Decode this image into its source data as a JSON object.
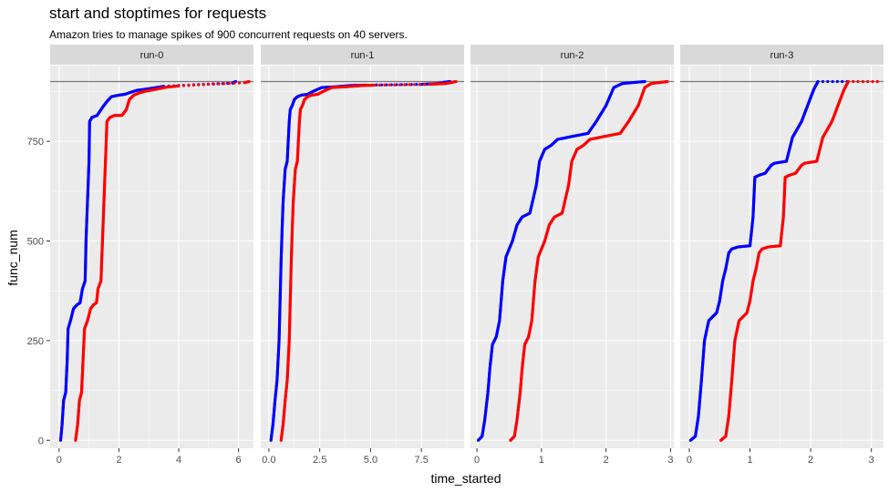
{
  "chart_data": {
    "type": "scatter",
    "title": "start and stoptimes for requests",
    "subtitle": "Amazon tries to manage spikes of 900 concurrent requests on 40 servers.",
    "xlabel": "time_started",
    "ylabel": "func_num",
    "ylim": [
      -20,
      940
    ],
    "yticks": [
      0,
      250,
      500,
      750
    ],
    "hline": 900,
    "grid": true,
    "colors": {
      "start": "#0000ff",
      "stop": "#ff0000"
    },
    "facets": [
      {
        "label": "run-0",
        "xlim": [
          -0.3,
          6.5
        ],
        "xticks": [
          0,
          2,
          4,
          6
        ],
        "start": [
          [
            0.05,
            0
          ],
          [
            0.1,
            40
          ],
          [
            0.15,
            100
          ],
          [
            0.22,
            120
          ],
          [
            0.27,
            200
          ],
          [
            0.3,
            280
          ],
          [
            0.38,
            300
          ],
          [
            0.48,
            330
          ],
          [
            0.6,
            340
          ],
          [
            0.7,
            345
          ],
          [
            0.78,
            380
          ],
          [
            0.87,
            400
          ],
          [
            0.9,
            500
          ],
          [
            0.95,
            600
          ],
          [
            1.0,
            700
          ],
          [
            1.02,
            800
          ],
          [
            1.1,
            810
          ],
          [
            1.27,
            815
          ],
          [
            1.45,
            835
          ],
          [
            1.6,
            850
          ],
          [
            1.75,
            862
          ],
          [
            2.0,
            866
          ],
          [
            2.2,
            868
          ],
          [
            2.35,
            872
          ],
          [
            2.6,
            878
          ],
          [
            3.0,
            882
          ],
          [
            3.5,
            888
          ],
          [
            4.5,
            892
          ],
          [
            5.8,
            896
          ],
          [
            5.9,
            900
          ]
        ],
        "stop": [
          [
            0.55,
            0
          ],
          [
            0.62,
            40
          ],
          [
            0.68,
            100
          ],
          [
            0.75,
            120
          ],
          [
            0.8,
            200
          ],
          [
            0.85,
            280
          ],
          [
            0.95,
            300
          ],
          [
            1.05,
            330
          ],
          [
            1.15,
            340
          ],
          [
            1.25,
            345
          ],
          [
            1.3,
            380
          ],
          [
            1.4,
            400
          ],
          [
            1.45,
            500
          ],
          [
            1.5,
            600
          ],
          [
            1.55,
            700
          ],
          [
            1.6,
            800
          ],
          [
            1.7,
            810
          ],
          [
            1.85,
            815
          ],
          [
            2.1,
            815
          ],
          [
            2.25,
            830
          ],
          [
            2.35,
            855
          ],
          [
            2.5,
            866
          ],
          [
            2.7,
            872
          ],
          [
            2.9,
            876
          ],
          [
            3.2,
            880
          ],
          [
            3.6,
            886
          ],
          [
            4.0,
            889
          ],
          [
            5.0,
            893
          ],
          [
            6.2,
            897
          ],
          [
            6.35,
            900
          ]
        ]
      },
      {
        "label": "run-1",
        "xlim": [
          -0.4,
          9.6
        ],
        "xticks": [
          0,
          2.5,
          5,
          7.5
        ],
        "start": [
          [
            0.1,
            0
          ],
          [
            0.2,
            40
          ],
          [
            0.3,
            100
          ],
          [
            0.4,
            150
          ],
          [
            0.5,
            250
          ],
          [
            0.55,
            350
          ],
          [
            0.6,
            450
          ],
          [
            0.65,
            530
          ],
          [
            0.7,
            600
          ],
          [
            0.8,
            680
          ],
          [
            0.9,
            700
          ],
          [
            0.95,
            750
          ],
          [
            1.0,
            800
          ],
          [
            1.05,
            830
          ],
          [
            1.15,
            840
          ],
          [
            1.25,
            855
          ],
          [
            1.4,
            862
          ],
          [
            1.6,
            866
          ],
          [
            1.9,
            868
          ],
          [
            2.2,
            876
          ],
          [
            2.6,
            885
          ],
          [
            3.3,
            887
          ],
          [
            4.0,
            890
          ],
          [
            4.8,
            891
          ],
          [
            7.5,
            893
          ],
          [
            8.3,
            895
          ],
          [
            8.6,
            898
          ],
          [
            8.9,
            900
          ]
        ],
        "stop": [
          [
            0.6,
            0
          ],
          [
            0.7,
            40
          ],
          [
            0.8,
            100
          ],
          [
            0.9,
            150
          ],
          [
            1.0,
            250
          ],
          [
            1.05,
            350
          ],
          [
            1.1,
            450
          ],
          [
            1.15,
            530
          ],
          [
            1.2,
            600
          ],
          [
            1.3,
            680
          ],
          [
            1.4,
            700
          ],
          [
            1.45,
            750
          ],
          [
            1.5,
            800
          ],
          [
            1.55,
            830
          ],
          [
            1.65,
            840
          ],
          [
            1.75,
            855
          ],
          [
            1.9,
            862
          ],
          [
            2.1,
            866
          ],
          [
            2.4,
            868
          ],
          [
            2.7,
            876
          ],
          [
            3.1,
            885
          ],
          [
            3.8,
            887
          ],
          [
            4.6,
            890
          ],
          [
            5.2,
            891
          ],
          [
            7.9,
            893
          ],
          [
            8.7,
            895
          ],
          [
            9.0,
            898
          ],
          [
            9.2,
            900
          ]
        ]
      },
      {
        "label": "run-2",
        "xlim": [
          -0.1,
          3.05
        ],
        "xticks": [
          0,
          1,
          2,
          3
        ],
        "start": [
          [
            0.02,
            0
          ],
          [
            0.08,
            10
          ],
          [
            0.12,
            50
          ],
          [
            0.17,
            120
          ],
          [
            0.2,
            180
          ],
          [
            0.24,
            240
          ],
          [
            0.3,
            260
          ],
          [
            0.35,
            300
          ],
          [
            0.4,
            400
          ],
          [
            0.45,
            460
          ],
          [
            0.55,
            500
          ],
          [
            0.62,
            540
          ],
          [
            0.7,
            560
          ],
          [
            0.82,
            570
          ],
          [
            0.92,
            640
          ],
          [
            0.97,
            700
          ],
          [
            1.05,
            730
          ],
          [
            1.15,
            740
          ],
          [
            1.25,
            755
          ],
          [
            1.35,
            758
          ],
          [
            1.4,
            760
          ],
          [
            1.72,
            770
          ],
          [
            1.85,
            800
          ],
          [
            2.0,
            840
          ],
          [
            2.12,
            885
          ],
          [
            2.25,
            895
          ],
          [
            2.45,
            898
          ],
          [
            2.6,
            900
          ]
        ],
        "stop": [
          [
            0.52,
            0
          ],
          [
            0.58,
            10
          ],
          [
            0.62,
            50
          ],
          [
            0.67,
            120
          ],
          [
            0.7,
            180
          ],
          [
            0.74,
            240
          ],
          [
            0.8,
            260
          ],
          [
            0.85,
            300
          ],
          [
            0.9,
            400
          ],
          [
            0.95,
            460
          ],
          [
            1.05,
            500
          ],
          [
            1.12,
            540
          ],
          [
            1.2,
            560
          ],
          [
            1.32,
            570
          ],
          [
            1.42,
            640
          ],
          [
            1.47,
            700
          ],
          [
            1.55,
            730
          ],
          [
            1.65,
            740
          ],
          [
            1.75,
            755
          ],
          [
            1.85,
            758
          ],
          [
            1.9,
            760
          ],
          [
            2.22,
            770
          ],
          [
            2.35,
            800
          ],
          [
            2.5,
            840
          ],
          [
            2.6,
            885
          ],
          [
            2.7,
            895
          ],
          [
            2.85,
            898
          ],
          [
            2.95,
            900
          ]
        ]
      },
      {
        "label": "run-3",
        "xlim": [
          -0.15,
          3.2
        ],
        "xticks": [
          0,
          1,
          2,
          3
        ],
        "start": [
          [
            0.02,
            0
          ],
          [
            0.1,
            10
          ],
          [
            0.15,
            60
          ],
          [
            0.2,
            150
          ],
          [
            0.25,
            250
          ],
          [
            0.32,
            300
          ],
          [
            0.45,
            320
          ],
          [
            0.5,
            350
          ],
          [
            0.55,
            400
          ],
          [
            0.6,
            430
          ],
          [
            0.65,
            470
          ],
          [
            0.7,
            480
          ],
          [
            0.8,
            485
          ],
          [
            1.0,
            488
          ],
          [
            1.05,
            560
          ],
          [
            1.08,
            660
          ],
          [
            1.15,
            665
          ],
          [
            1.25,
            670
          ],
          [
            1.35,
            690
          ],
          [
            1.4,
            695
          ],
          [
            1.6,
            700
          ],
          [
            1.7,
            760
          ],
          [
            1.85,
            800
          ],
          [
            1.95,
            840
          ],
          [
            2.05,
            880
          ],
          [
            2.12,
            900
          ],
          [
            2.6,
            900
          ]
        ],
        "stop": [
          [
            0.52,
            0
          ],
          [
            0.6,
            10
          ],
          [
            0.65,
            60
          ],
          [
            0.7,
            150
          ],
          [
            0.75,
            250
          ],
          [
            0.82,
            300
          ],
          [
            0.95,
            320
          ],
          [
            1.0,
            350
          ],
          [
            1.05,
            400
          ],
          [
            1.1,
            430
          ],
          [
            1.15,
            470
          ],
          [
            1.2,
            480
          ],
          [
            1.3,
            485
          ],
          [
            1.5,
            488
          ],
          [
            1.55,
            560
          ],
          [
            1.58,
            660
          ],
          [
            1.65,
            665
          ],
          [
            1.75,
            670
          ],
          [
            1.85,
            690
          ],
          [
            1.9,
            695
          ],
          [
            2.1,
            700
          ],
          [
            2.2,
            760
          ],
          [
            2.35,
            800
          ],
          [
            2.45,
            840
          ],
          [
            2.55,
            880
          ],
          [
            2.62,
            900
          ],
          [
            3.1,
            900
          ]
        ]
      }
    ]
  }
}
